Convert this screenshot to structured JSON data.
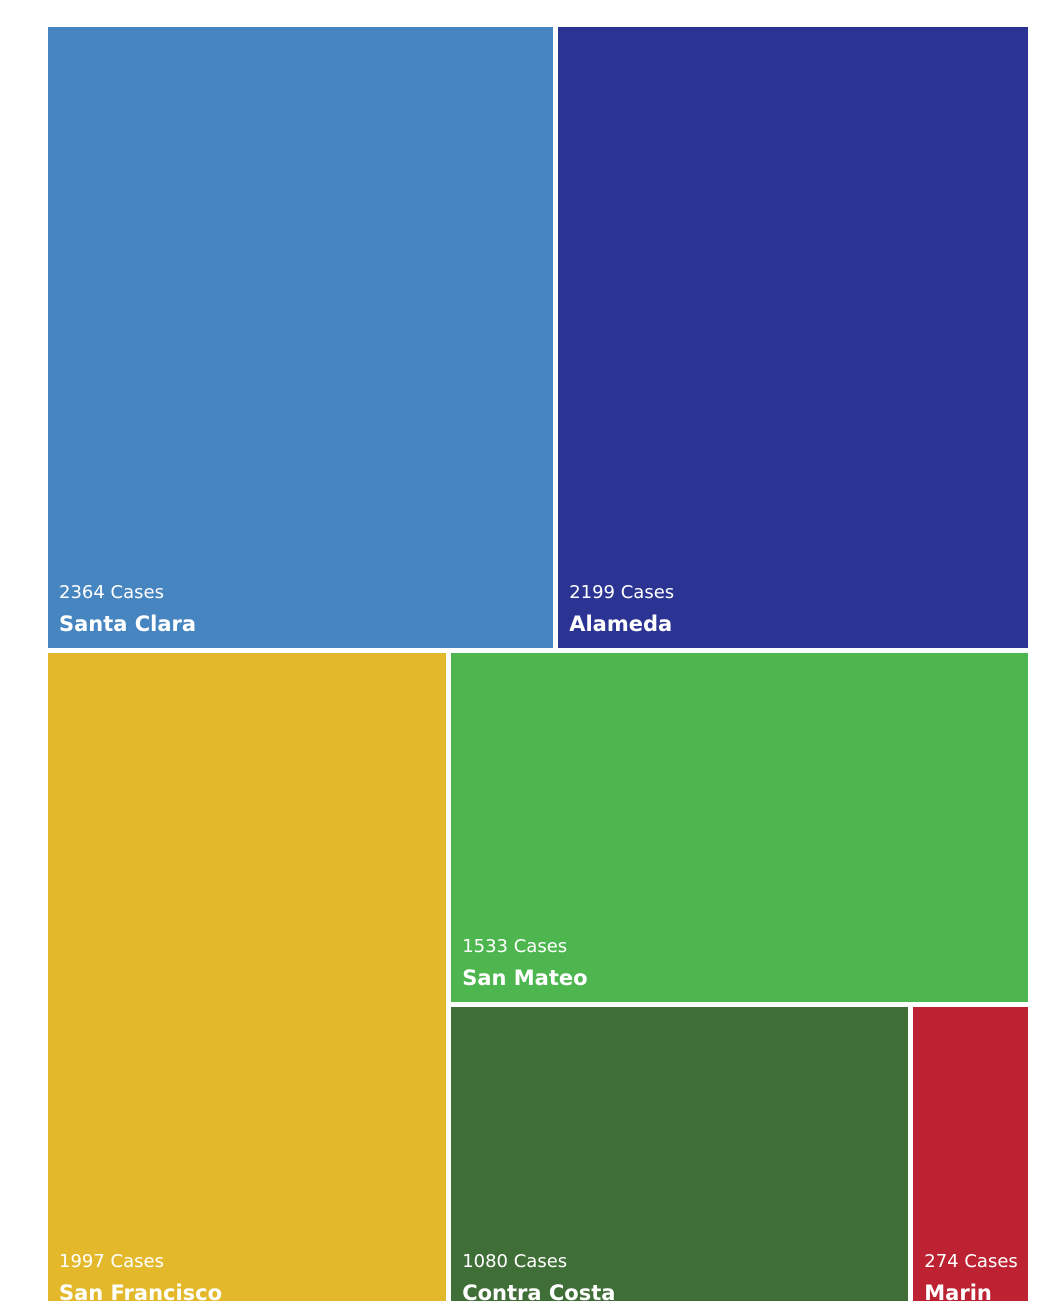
{
  "chart_data": {
    "type": "treemap",
    "value_suffix": "Cases",
    "items": [
      {
        "name": "Santa Clara",
        "value": 2364,
        "count_label": "2364 Cases",
        "color": "#4785C1"
      },
      {
        "name": "Alameda",
        "value": 2199,
        "count_label": "2199 Cases",
        "color": "#2B3393"
      },
      {
        "name": "San Francisco",
        "value": 1997,
        "count_label": "1997 Cases",
        "color": "#E3B92B"
      },
      {
        "name": "San Mateo",
        "value": 1533,
        "count_label": "1533 Cases",
        "color": "#4DB64F"
      },
      {
        "name": "Contra Costa",
        "value": 1080,
        "count_label": "1080 Cases",
        "color": "#406E37"
      },
      {
        "name": "Marin",
        "value": 274,
        "count_label": "274 Cases",
        "color": "#BC2231"
      }
    ]
  }
}
